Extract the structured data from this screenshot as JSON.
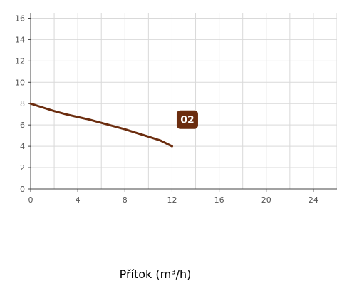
{
  "chart_data": {
    "type": "line",
    "xlabel": "Přítok (m³/h)",
    "ylabel": "",
    "title": "",
    "xlim": [
      0,
      26
    ],
    "ylim": [
      0,
      16.5
    ],
    "x_ticks": [
      "0",
      "4",
      "8",
      "12",
      "16",
      "20",
      "24"
    ],
    "y_ticks": [
      "0",
      "2",
      "4",
      "6",
      "8",
      "10",
      "12",
      "14",
      "16"
    ],
    "grid": true,
    "series": [
      {
        "name": "02",
        "color": "#6b2d0f",
        "x": [
          0,
          1,
          2,
          3,
          4,
          5,
          6,
          7,
          8,
          9,
          10,
          11,
          12
        ],
        "y": [
          8.0,
          7.65,
          7.3,
          7.0,
          6.75,
          6.5,
          6.2,
          5.9,
          5.6,
          5.25,
          4.9,
          4.55,
          4.0
        ]
      }
    ],
    "badge": {
      "text": "02",
      "color": "#6b2d0f"
    }
  }
}
